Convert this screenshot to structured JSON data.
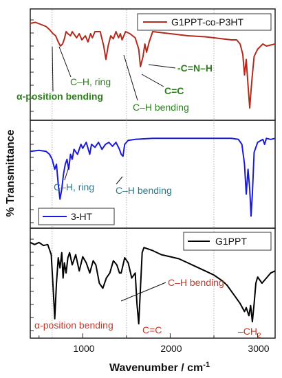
{
  "chart_data": {
    "type": "line",
    "xlabel": "Wavenumber / cm",
    "xlabel_superscript": "-1",
    "ylabel": "% Transmittance",
    "xlim": [
      400,
      3200
    ],
    "x_ticks": [
      "1000",
      "2000",
      "3000"
    ],
    "x_tick_values": [
      1000,
      2000,
      3000
    ],
    "reference_lines_x": [
      650,
      1500,
      2500
    ],
    "grid": false,
    "panels": [
      {
        "legend": "G1PPT-co-P3HT",
        "legend_position": "top-right",
        "color": "#b22a1c",
        "label_color": "#2e7d1e",
        "x": [
          400,
          460,
          520,
          580,
          620,
          660,
          690,
          720,
          745,
          770,
          790,
          810,
          830,
          860,
          880,
          930,
          960,
          990,
          1030,
          1060,
          1090,
          1110,
          1140,
          1200,
          1240,
          1265,
          1290,
          1320,
          1350,
          1380,
          1410,
          1430,
          1450,
          1490,
          1540,
          1600,
          1640,
          1660,
          1690,
          1710,
          1730,
          1760,
          1800,
          2000,
          2200,
          2400,
          2600,
          2700,
          2760,
          2800,
          2830,
          2850,
          2870,
          2890,
          2910,
          2925,
          2940,
          2960,
          3000,
          3060,
          3100,
          3200
        ],
        "y": [
          90,
          91,
          89,
          87,
          84,
          80,
          78,
          72,
          68,
          70,
          75,
          82,
          80,
          78,
          82,
          76,
          80,
          74,
          78,
          72,
          80,
          76,
          82,
          82,
          68,
          55,
          68,
          78,
          75,
          82,
          76,
          80,
          74,
          82,
          80,
          76,
          65,
          48,
          58,
          70,
          62,
          72,
          82,
          80,
          78,
          77,
          75,
          74,
          74,
          70,
          60,
          40,
          55,
          30,
          8,
          25,
          40,
          58,
          65,
          70,
          68,
          70
        ]
      },
      {
        "legend": "3-HT",
        "legend_position": "bottom-left",
        "color": "#1a1adb",
        "label_color": "#2a7a8c",
        "x": [
          400,
          500,
          580,
          620,
          650,
          680,
          700,
          720,
          740,
          760,
          780,
          800,
          820,
          840,
          860,
          880,
          900,
          940,
          980,
          1000,
          1040,
          1080,
          1100,
          1140,
          1180,
          1220,
          1260,
          1300,
          1340,
          1380,
          1420,
          1440,
          1460,
          1480,
          1520,
          1600,
          1800,
          2000,
          2200,
          2400,
          2600,
          2700,
          2780,
          2820,
          2850,
          2870,
          2890,
          2910,
          2925,
          2940,
          2960,
          3000,
          3060,
          3080,
          3100,
          3150,
          3200
        ],
        "y": [
          73,
          74,
          73,
          70,
          65,
          55,
          60,
          40,
          25,
          35,
          50,
          60,
          65,
          55,
          70,
          65,
          75,
          70,
          80,
          76,
          82,
          70,
          80,
          77,
          82,
          75,
          80,
          82,
          78,
          82,
          75,
          70,
          68,
          80,
          84,
          85,
          86,
          86,
          86,
          86,
          86,
          86,
          85,
          80,
          60,
          30,
          55,
          35,
          8,
          30,
          72,
          82,
          85,
          80,
          86,
          85,
          86
        ]
      },
      {
        "legend": "G1PPT",
        "legend_position": "top-right",
        "color": "#000000",
        "label_color": "#c0392b",
        "x": [
          400,
          450,
          500,
          550,
          600,
          640,
          665,
          680,
          700,
          720,
          740,
          760,
          775,
          790,
          810,
          830,
          850,
          880,
          920,
          960,
          1000,
          1040,
          1080,
          1120,
          1150,
          1190,
          1230,
          1270,
          1310,
          1350,
          1390,
          1420,
          1440,
          1480,
          1520,
          1560,
          1600,
          1620,
          1640,
          1660,
          1680,
          1700,
          1800,
          1900,
          2000,
          2100,
          2200,
          2300,
          2400,
          2500,
          2600,
          2650,
          2700,
          2750,
          2800,
          2850,
          2870,
          2900,
          2920,
          2940,
          2960,
          2980,
          3000,
          3050,
          3100,
          3150,
          3200
        ],
        "y": [
          90,
          88,
          90,
          87,
          88,
          78,
          40,
          15,
          50,
          75,
          65,
          80,
          55,
          70,
          60,
          75,
          80,
          68,
          78,
          62,
          76,
          70,
          60,
          72,
          68,
          50,
          45,
          55,
          60,
          72,
          68,
          60,
          60,
          75,
          70,
          55,
          60,
          30,
          10,
          45,
          80,
          85,
          82,
          78,
          76,
          74,
          70,
          66,
          62,
          58,
          52,
          48,
          42,
          36,
          30,
          22,
          26,
          18,
          28,
          12,
          30,
          50,
          56,
          50,
          55,
          60,
          62
        ]
      }
    ],
    "annotations": [
      {
        "panel": 0,
        "text": "C–H, ring"
      },
      {
        "panel": 0,
        "text": "α-position bending"
      },
      {
        "panel": 0,
        "text": "-C=N–H"
      },
      {
        "panel": 0,
        "text": "C=C"
      },
      {
        "panel": 0,
        "text": "C–H bending"
      },
      {
        "panel": 1,
        "text": "C–H, ring"
      },
      {
        "panel": 1,
        "text": "C–H bending"
      },
      {
        "panel": 2,
        "text": "C–H bending"
      },
      {
        "panel": 2,
        "text": "α-position bending"
      },
      {
        "panel": 2,
        "text": "C=C"
      },
      {
        "panel": 2,
        "text": "–CH"
      },
      {
        "panel": 2,
        "text": "2"
      }
    ]
  }
}
